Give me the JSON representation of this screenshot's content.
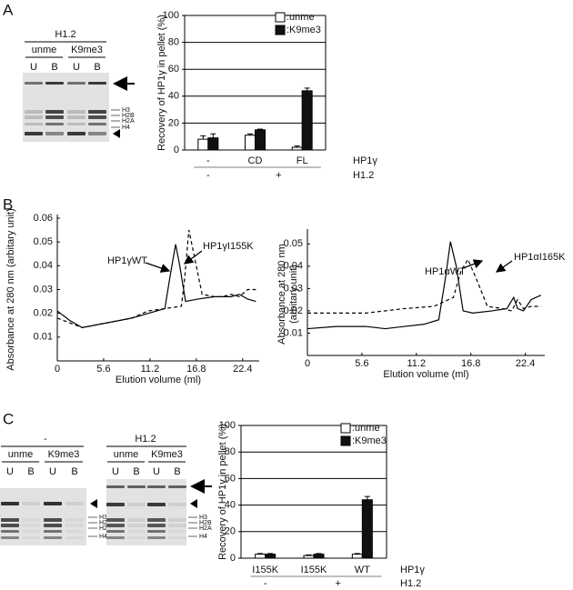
{
  "panel_labels": [
    "A",
    "B",
    "C"
  ],
  "gels": [
    {
      "title": "H1.2",
      "groups": [
        "unme",
        "K9me3"
      ],
      "lanes": [
        "U",
        "B",
        "U",
        "B"
      ],
      "histones": [
        "H3",
        "H2B",
        "H2A",
        "H4"
      ]
    },
    {
      "title": "-",
      "groups": [
        "unme",
        "K9me3"
      ],
      "lanes": [
        "U",
        "B",
        "U",
        "B"
      ],
      "histones": [
        "H3",
        "H2B",
        "H2A",
        "H4"
      ]
    },
    {
      "title": "H1.2",
      "groups": [
        "unme",
        "K9me3"
      ],
      "lanes": [
        "U",
        "B",
        "U",
        "B"
      ],
      "histones": [
        "H3",
        "H2B",
        "H2A",
        "H4"
      ]
    }
  ],
  "chart_data": [
    {
      "type": "bar",
      "y_label": "Recovery of  HP1γ in pellet (%)",
      "categories": [
        "-",
        "CD",
        "FL"
      ],
      "category_row_label": "HP1γ",
      "group_labels": [
        "-",
        "+",
        null
      ],
      "group_row_label": "H1.2",
      "series": [
        {
          "name": ":unme",
          "color": "#ffffff",
          "values": [
            8,
            11,
            2
          ],
          "errors": [
            2.5,
            1,
            1
          ]
        },
        {
          "name": ":K9me3",
          "color": "#111111",
          "values": [
            9,
            15,
            44
          ],
          "errors": [
            3,
            0.5,
            2
          ]
        }
      ],
      "ylim": [
        0,
        100
      ],
      "yticks": [
        0,
        20,
        40,
        60,
        80,
        100
      ],
      "grid": true
    },
    {
      "type": "line",
      "x_label": "Elution volume (ml)",
      "y_label": "Absorbance at 280 nm (arbitary unit)",
      "xlim": [
        0,
        24.4
      ],
      "xticks": [
        0,
        5.6,
        11.2,
        16.8,
        22.4
      ],
      "ylim": [
        0,
        0.06
      ],
      "yticks": [
        0.01,
        0.02,
        0.03,
        0.04,
        0.05,
        0.06
      ],
      "series": [
        {
          "name": "HP1γWT",
          "line_style": "solid",
          "x": [
            0,
            1.5,
            3,
            6,
            9,
            11,
            13,
            13.6,
            14.3,
            14.8,
            15.5,
            17,
            19,
            21,
            22,
            23,
            24
          ],
          "values": [
            0.021,
            0.017,
            0.014,
            0.016,
            0.018,
            0.02,
            0.022,
            0.035,
            0.049,
            0.04,
            0.025,
            0.026,
            0.027,
            0.027,
            0.028,
            0.026,
            0.025
          ]
        },
        {
          "name": "HP1γI155K",
          "line_style": "dashed",
          "x": [
            0,
            1.5,
            3,
            6,
            9,
            11,
            13,
            15,
            15.4,
            15.9,
            16.5,
            17.5,
            19,
            20,
            21,
            22,
            23,
            24
          ],
          "values": [
            0.018,
            0.016,
            0.014,
            0.016,
            0.018,
            0.021,
            0.022,
            0.023,
            0.035,
            0.055,
            0.045,
            0.028,
            0.027,
            0.027,
            0.028,
            0.027,
            0.03,
            0.03
          ]
        }
      ]
    },
    {
      "type": "line",
      "x_label": "Elution volume (ml)",
      "y_label": [
        "Absorbance at 280 nm",
        "(arbitary unit)"
      ],
      "xlim": [
        0,
        24.4
      ],
      "xticks": [
        0,
        5.6,
        11.2,
        16.8,
        22.4
      ],
      "ylim": [
        0,
        0.055
      ],
      "yticks": [
        0.01,
        0.02,
        0.03,
        0.04,
        0.05
      ],
      "series": [
        {
          "name": "HP1αWT",
          "line_style": "solid",
          "x": [
            0,
            3,
            6,
            8,
            10,
            12,
            13.5,
            14.2,
            14.7,
            15.3,
            16,
            17,
            19,
            20.5,
            21.2,
            21.6,
            22.2,
            23,
            24
          ],
          "values": [
            0.012,
            0.013,
            0.013,
            0.012,
            0.013,
            0.014,
            0.016,
            0.035,
            0.051,
            0.04,
            0.02,
            0.019,
            0.02,
            0.021,
            0.026,
            0.021,
            0.02,
            0.025,
            0.027
          ]
        },
        {
          "name": "HP1αI165K",
          "line_style": "dashed",
          "x": [
            0,
            3,
            6,
            8,
            10,
            13,
            15,
            15.8,
            16.5,
            17.3,
            18.5,
            20,
            21,
            21.6,
            22.2,
            23,
            24
          ],
          "values": [
            0.019,
            0.019,
            0.019,
            0.02,
            0.021,
            0.022,
            0.026,
            0.038,
            0.043,
            0.035,
            0.022,
            0.021,
            0.02,
            0.025,
            0.021,
            0.022,
            0.022
          ]
        }
      ]
    },
    {
      "type": "bar",
      "y_label": "Recovery of  HP1γ in pellet (%)",
      "categories": [
        "I155K",
        "I155K",
        "WT"
      ],
      "category_row_label": "HP1γ",
      "group_labels": [
        "-",
        "+",
        null
      ],
      "group_row_label": "H1.2",
      "series": [
        {
          "name": ":unme",
          "color": "#ffffff",
          "values": [
            3,
            2,
            3
          ],
          "errors": [
            0.5,
            0.5,
            0.5
          ]
        },
        {
          "name": ":K9me3",
          "color": "#111111",
          "values": [
            3,
            3,
            44
          ],
          "errors": [
            0.5,
            0.5,
            2.5
          ]
        }
      ],
      "ylim": [
        0,
        100
      ],
      "yticks": [
        0,
        20,
        40,
        60,
        80,
        100
      ],
      "grid": true
    }
  ]
}
